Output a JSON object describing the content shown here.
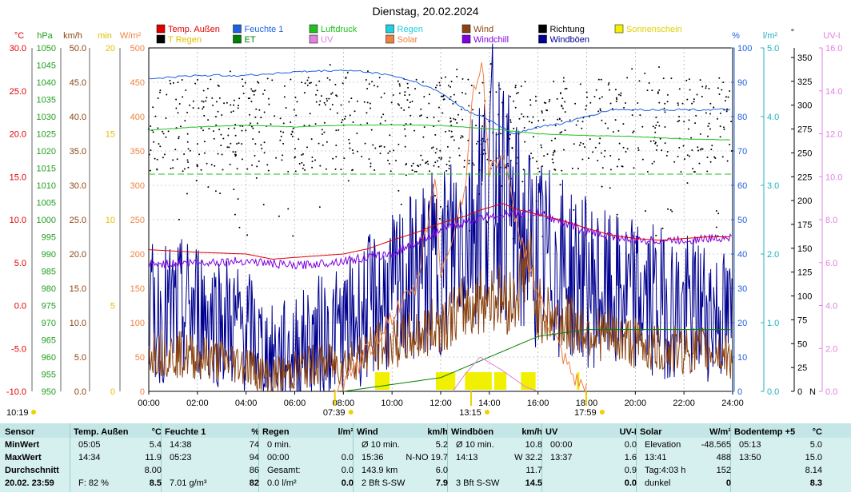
{
  "title": "Dienstag, 20.02.2024",
  "legend": [
    {
      "label": "Temp. Außen",
      "color": "#e00000",
      "col": 0,
      "row": 0
    },
    {
      "label": "Feuchte 1",
      "color": "#2060e0",
      "col": 1,
      "row": 0
    },
    {
      "label": "Luftdruck",
      "color": "#20c020",
      "col": 2,
      "row": 0
    },
    {
      "label": "Regen",
      "color": "#20d0e0",
      "col": 3,
      "row": 0
    },
    {
      "label": "Wind",
      "color": "#8b4513",
      "col": 4,
      "row": 0
    },
    {
      "label": "Richtung",
      "color": "#000000",
      "col": 5,
      "row": 0
    },
    {
      "label": "Sonnenschein",
      "color": "#f0f000",
      "col": 6,
      "row": 0
    },
    {
      "label": "T Regen",
      "color": "#000000",
      "col": 0,
      "row": 1
    },
    {
      "label": "ET",
      "color": "#008000",
      "col": 1,
      "row": 1
    },
    {
      "label": "UV",
      "color": "#e080e0",
      "col": 2,
      "row": 1
    },
    {
      "label": "Solar",
      "color": "#f08040",
      "col": 3,
      "row": 1
    },
    {
      "label": "Windchill",
      "color": "#8000e0",
      "col": 4,
      "row": 1
    },
    {
      "label": "Windböen",
      "color": "#000090",
      "col": 5,
      "row": 1
    }
  ],
  "axes": {
    "temp": {
      "unit": "°C",
      "color": "#e00000",
      "ticks": [
        "30.0",
        "25.0",
        "20.0",
        "15.0",
        "10.0",
        "5.0",
        "0.0",
        "-5.0",
        "-10.0"
      ]
    },
    "pressure": {
      "unit": "hPa",
      "color": "#20a020",
      "ticks": [
        "1050",
        "1045",
        "1040",
        "1035",
        "1030",
        "1025",
        "1020",
        "1015",
        "1010",
        "1005",
        "1000",
        "995",
        "990",
        "985",
        "980",
        "975",
        "970",
        "965",
        "960",
        "955",
        "950"
      ]
    },
    "wind": {
      "unit": "km/h",
      "color": "#8b4513",
      "ticks": [
        "50.0",
        "45.0",
        "40.0",
        "35.0",
        "30.0",
        "25.0",
        "20.0",
        "15.0",
        "10.0",
        "5.0",
        "0.0"
      ]
    },
    "sunmin": {
      "unit": "min",
      "color": "#e0c000",
      "ticks": [
        "20",
        "15",
        "10",
        "5",
        "0"
      ]
    },
    "solar": {
      "unit": "W/m²",
      "color": "#f08040",
      "ticks": [
        "500",
        "450",
        "400",
        "350",
        "300",
        "250",
        "200",
        "150",
        "100",
        "50",
        "0"
      ]
    },
    "humidity": {
      "unit": "%",
      "color": "#2060e0",
      "ticks": [
        "100",
        "90",
        "80",
        "70",
        "60",
        "50",
        "40",
        "30",
        "20",
        "10",
        "0"
      ]
    },
    "rain": {
      "unit": "l/m²",
      "color": "#20b0c0",
      "ticks": [
        "5.0",
        "4.0",
        "3.0",
        "2.0",
        "1.0",
        "0.0"
      ]
    },
    "direction": {
      "unit": "°",
      "color": "#000000",
      "ticks": [
        "350",
        "325",
        "300",
        "275",
        "250",
        "225",
        "200",
        "175",
        "150",
        "125",
        "100",
        "75",
        "50",
        "25",
        "0"
      ],
      "n_label": "N"
    },
    "uv": {
      "unit": "UV-I",
      "color": "#e080e0",
      "ticks": [
        "16.0",
        "14.0",
        "12.0",
        "10.0",
        "8.0",
        "6.0",
        "4.0",
        "2.0",
        "0.0"
      ]
    },
    "x_ticks": [
      "00:00",
      "02:00",
      "04:00",
      "06:00",
      "08:00",
      "10:00",
      "12:00",
      "14:00",
      "16:00",
      "18:00",
      "20:00",
      "22:00",
      "24:00"
    ]
  },
  "sun_markers": {
    "left_time": "10:19",
    "sunrise": "07:39",
    "noon": "13:15",
    "sunset": "17:59"
  },
  "chart_data": {
    "type": "line",
    "x_unit": "hours",
    "x_range": [
      0,
      24
    ],
    "series": [
      {
        "name": "Temp. Außen",
        "axis": "°C",
        "color": "#e00000",
        "points": [
          [
            0,
            6.5
          ],
          [
            2,
            6.2
          ],
          [
            4,
            6.0
          ],
          [
            5.08,
            5.4
          ],
          [
            6,
            5.6
          ],
          [
            7,
            5.8
          ],
          [
            8,
            6.0
          ],
          [
            9,
            6.6
          ],
          [
            10,
            7.6
          ],
          [
            11,
            8.5
          ],
          [
            12,
            9.6
          ],
          [
            13,
            10.4
          ],
          [
            13.5,
            11.0
          ],
          [
            14.57,
            11.9
          ],
          [
            15,
            11.3
          ],
          [
            16,
            10.6
          ],
          [
            17,
            9.9
          ],
          [
            18,
            9.0
          ],
          [
            19,
            8.2
          ],
          [
            20,
            7.8
          ],
          [
            21,
            7.6
          ],
          [
            22,
            7.8
          ],
          [
            23,
            8.0
          ],
          [
            24,
            8.0
          ]
        ]
      },
      {
        "name": "Windchill",
        "axis": "°C",
        "color": "#8000e0",
        "points": [
          [
            0,
            4.8
          ],
          [
            2,
            5.0
          ],
          [
            4,
            5.2
          ],
          [
            6,
            4.6
          ],
          [
            8,
            5.2
          ],
          [
            10,
            6.0
          ],
          [
            12,
            8.8
          ],
          [
            14,
            10.5
          ],
          [
            16,
            10.8
          ],
          [
            18,
            8.6
          ],
          [
            20,
            7.6
          ],
          [
            22,
            7.6
          ],
          [
            24,
            8.0
          ]
        ]
      },
      {
        "name": "Feuchte 1",
        "axis": "%",
        "color": "#2060e0",
        "points": [
          [
            0,
            91
          ],
          [
            2,
            92
          ],
          [
            4,
            92
          ],
          [
            6,
            93
          ],
          [
            8,
            93.5
          ],
          [
            9,
            93
          ],
          [
            10,
            92
          ],
          [
            11,
            90
          ],
          [
            12,
            87
          ],
          [
            13,
            82
          ],
          [
            14,
            79
          ],
          [
            14.5,
            77
          ],
          [
            15,
            75
          ],
          [
            16,
            77
          ],
          [
            17,
            78
          ],
          [
            18,
            80
          ],
          [
            19,
            82
          ],
          [
            20,
            82
          ],
          [
            21,
            82
          ],
          [
            22,
            82
          ],
          [
            23,
            82
          ],
          [
            24,
            82
          ]
        ]
      },
      {
        "name": "Luftdruck",
        "axis": "hPa",
        "color": "#20c020",
        "points": [
          [
            0,
            1026
          ],
          [
            2,
            1027
          ],
          [
            4,
            1027.5
          ],
          [
            6,
            1027
          ],
          [
            8,
            1027.5
          ],
          [
            10,
            1027.6
          ],
          [
            12,
            1027.4
          ],
          [
            14,
            1026.5
          ],
          [
            16,
            1025
          ],
          [
            18,
            1024.5
          ],
          [
            20,
            1024.2
          ],
          [
            22,
            1023.5
          ],
          [
            24,
            1023.2
          ]
        ]
      },
      {
        "name": "Windböen",
        "axis": "km/h",
        "color": "#000090",
        "points": [
          [
            0,
            11
          ],
          [
            2,
            12
          ],
          [
            4,
            9
          ],
          [
            5,
            5
          ],
          [
            6,
            6
          ],
          [
            7,
            8
          ],
          [
            8,
            9
          ],
          [
            9,
            12
          ],
          [
            10,
            14
          ],
          [
            11,
            17
          ],
          [
            12,
            19
          ],
          [
            13,
            24
          ],
          [
            14.22,
            32.2
          ],
          [
            15,
            24
          ],
          [
            16,
            20
          ],
          [
            17,
            18
          ],
          [
            18,
            16
          ],
          [
            19,
            14
          ],
          [
            20,
            14
          ],
          [
            21,
            13
          ],
          [
            22,
            12
          ],
          [
            23,
            12
          ],
          [
            24,
            10
          ]
        ]
      },
      {
        "name": "Wind",
        "axis": "km/h",
        "color": "#8b4513",
        "points": [
          [
            0,
            6
          ],
          [
            2,
            5
          ],
          [
            4,
            4
          ],
          [
            5,
            2
          ],
          [
            6,
            3
          ],
          [
            7,
            4
          ],
          [
            8,
            4
          ],
          [
            9,
            6
          ],
          [
            10,
            7
          ],
          [
            11,
            8
          ],
          [
            12,
            10
          ],
          [
            13,
            12
          ],
          [
            14,
            14
          ],
          [
            15,
            13
          ],
          [
            15.6,
            19.7
          ],
          [
            16,
            12
          ],
          [
            17,
            10
          ],
          [
            18,
            9
          ],
          [
            19,
            8
          ],
          [
            20,
            7
          ],
          [
            21,
            6
          ],
          [
            22,
            6
          ],
          [
            23,
            6
          ],
          [
            24,
            5
          ]
        ]
      },
      {
        "name": "Solar",
        "axis": "W/m²",
        "color": "#f08040",
        "points": [
          [
            7.6,
            0
          ],
          [
            8,
            5
          ],
          [
            9,
            60
          ],
          [
            10,
            110
          ],
          [
            11,
            150
          ],
          [
            11.8,
            320
          ],
          [
            12,
            160
          ],
          [
            12.5,
            230
          ],
          [
            13,
            300
          ],
          [
            13.3,
            420
          ],
          [
            13.68,
            488
          ],
          [
            14,
            320
          ],
          [
            14.5,
            350
          ],
          [
            15,
            260
          ],
          [
            15.5,
            200
          ],
          [
            16,
            140
          ],
          [
            16.5,
            90
          ],
          [
            17,
            50
          ],
          [
            17.5,
            15
          ],
          [
            18,
            0
          ]
        ]
      },
      {
        "name": "ET",
        "axis": "l/m²",
        "color": "#008000",
        "points": [
          [
            8,
            0
          ],
          [
            12,
            0.2
          ],
          [
            14,
            0.5
          ],
          [
            16,
            0.8
          ],
          [
            18,
            0.9
          ],
          [
            24,
            0.9
          ]
        ]
      },
      {
        "name": "UV",
        "axis": "UV-I",
        "color": "#e080e0",
        "points": [
          [
            12.5,
            0
          ],
          [
            13,
            0.8
          ],
          [
            13.62,
            1.6
          ],
          [
            14.5,
            1.0
          ],
          [
            15.5,
            0.2
          ],
          [
            16,
            0
          ]
        ]
      }
    ],
    "scatter": {
      "name": "Richtung",
      "axis": "°",
      "color": "#000000",
      "range": [
        160,
        345
      ]
    },
    "sunshine_blocks": [
      [
        9.3,
        9.9
      ],
      [
        11.8,
        12.6
      ],
      [
        13,
        14.1
      ],
      [
        14.2,
        14.7
      ],
      [
        15.3,
        15.9
      ],
      [
        17.6,
        17.7
      ]
    ]
  },
  "table": {
    "columns": [
      {
        "head": "Sensor",
        "unit": ""
      },
      {
        "head": "Temp. Außen",
        "unit": "°C"
      },
      {
        "head": "Feuchte 1",
        "unit": "%"
      },
      {
        "head": "Regen",
        "unit": "l/m²"
      },
      {
        "head": "Wind",
        "unit": "km/h"
      },
      {
        "head": "Windböen",
        "unit": "km/h"
      },
      {
        "head": "UV",
        "unit": "UV-I"
      },
      {
        "head": "Solar",
        "unit": "W/m²"
      },
      {
        "head": "Bodentemp +5",
        "unit": "°C"
      }
    ],
    "rows": [
      {
        "label": "MinWert",
        "cells": [
          [
            "05:05",
            "5.4"
          ],
          [
            "14:38",
            "74"
          ],
          [
            "0 min.",
            ""
          ],
          [
            "Ø 10 min.",
            "5.2"
          ],
          [
            "Ø 10 min.",
            "10.8"
          ],
          [
            "00:00",
            "0.0"
          ],
          [
            "Elevation",
            "-48.565"
          ],
          [
            "05:13",
            "5.0"
          ]
        ]
      },
      {
        "label": "MaxWert",
        "cells": [
          [
            "14:34",
            "11.9"
          ],
          [
            "05:23",
            "94"
          ],
          [
            "00:00",
            "0.0"
          ],
          [
            "15:36",
            "N-NO 19.7"
          ],
          [
            "14:13",
            "W 32.2"
          ],
          [
            "13:37",
            "1.6"
          ],
          [
            "13:41",
            "488"
          ],
          [
            "13:50",
            "15.0"
          ]
        ]
      },
      {
        "label": "Durchschnitt",
        "cells": [
          [
            "",
            "8.00"
          ],
          [
            "",
            "86"
          ],
          [
            "Gesamt:",
            "0.0"
          ],
          [
            "143.9 km",
            "6.0"
          ],
          [
            "",
            "11.7"
          ],
          [
            "",
            "0.9"
          ],
          [
            "Tag:4:03 h",
            "152"
          ],
          [
            "",
            "8.14"
          ]
        ]
      },
      {
        "label": "20.02. 23:59",
        "cells": [
          [
            "F: 82 %",
            "8.5"
          ],
          [
            "7.01 g/m³",
            "82"
          ],
          [
            "0.0 l/m²",
            "0.0"
          ],
          [
            "2 Bft S-SW",
            "7.9"
          ],
          [
            "3 Bft S-SW",
            "14.5"
          ],
          [
            "",
            "0.0"
          ],
          [
            "dunkel",
            "0"
          ],
          [
            "",
            "8.3"
          ]
        ]
      }
    ]
  }
}
